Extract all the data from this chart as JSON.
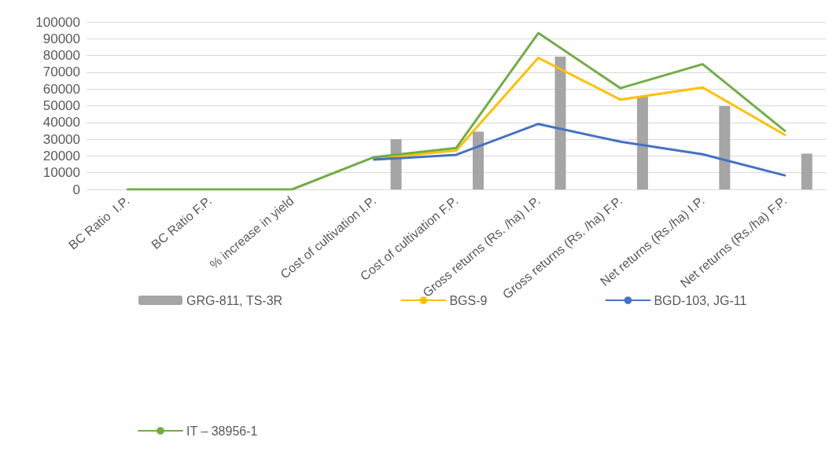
{
  "chart_data": {
    "type": "bar",
    "categories": [
      "BC Ratio  I.P.",
      "BC Ratio F.P.",
      "% increase in yield",
      "Cost of cultivation I.P.",
      "Cost of cultivation F.P.",
      "Gross returns (Rs. /ha) I.P.",
      "Gross returns (Rs. /ha) F.P.",
      "Net returns (Rs./ha) I.P.",
      "Net returns (Rs./ha) F.P."
    ],
    "series": [
      {
        "color": "#5b9bd5",
        "values": [
          null,
          null,
          null,
          null,
          null,
          null,
          null,
          null,
          null
        ]
      },
      {
        "color": "#ed7d31",
        "values": [
          null,
          null,
          null,
          null,
          null,
          null,
          null,
          null,
          null
        ]
      },
      {
        "name": "GRG-811, TS-3R",
        "color": "#a5a5a5",
        "values": [
          0,
          0,
          0,
          30000,
          34500,
          79400,
          55600,
          49800,
          21400
        ]
      },
      {
        "type": "line",
        "name": "BGS-9",
        "color": "#ffc000",
        "values": [
          null,
          null,
          null,
          18500,
          23200,
          78600,
          53600,
          60900,
          32600
        ]
      },
      {
        "type": "line",
        "name": "BGD-103, JG-11",
        "color": "#4472c4",
        "values": [
          null,
          null,
          null,
          17800,
          20700,
          39100,
          28500,
          21000,
          8400
        ]
      },
      {
        "type": "line",
        "name": "IT – 38956-1",
        "color": "#70ad47",
        "values": [
          0,
          0,
          0,
          19300,
          24800,
          93400,
          60500,
          74800,
          35000
        ]
      }
    ],
    "ylim": [
      0,
      100000
    ],
    "yticks": [
      0,
      10000,
      20000,
      30000,
      40000,
      50000,
      60000,
      70000,
      80000,
      90000,
      100000
    ],
    "grid": "y",
    "legend": "bottom",
    "marker": "none",
    "line_style": "solid"
  }
}
